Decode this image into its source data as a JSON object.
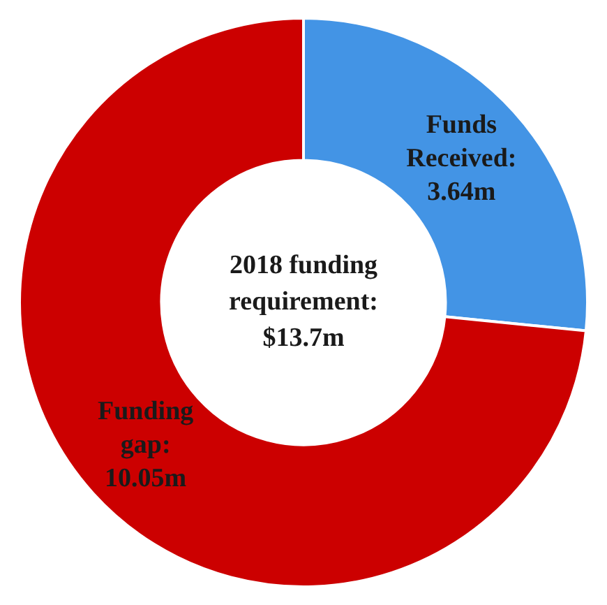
{
  "chart_data": {
    "type": "donut",
    "title": "2018 funding requirement: $13.7m",
    "categories": [
      null,
      null
    ],
    "values": [
      3.64,
      10.05
    ],
    "value_labels": [
      "Funds Received: 3.64m",
      "Funding gap: 10.05m"
    ],
    "colors": [
      "#4394e5",
      "#cc0000"
    ]
  }
}
